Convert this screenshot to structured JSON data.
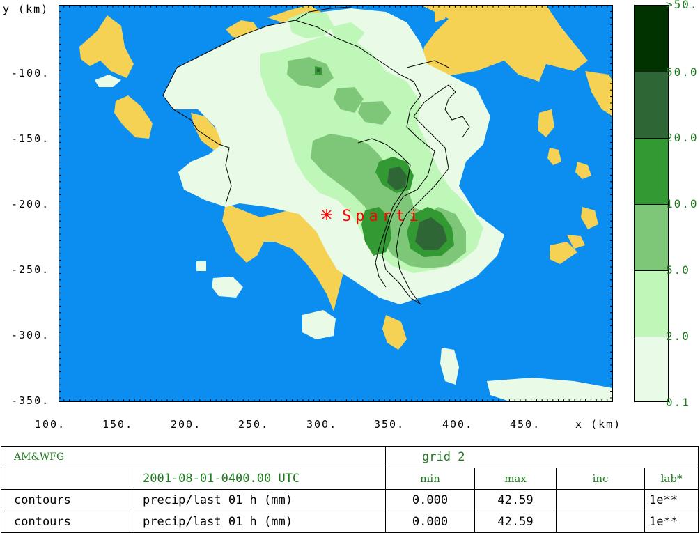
{
  "map": {
    "y_axis_label": "y (km)",
    "x_axis_label": "x (km)",
    "y_ticks": [
      "-100.",
      "-150.",
      "-200.",
      "-250.",
      "-300.",
      "-350."
    ],
    "x_ticks": [
      "100.",
      "150.",
      "200.",
      "250.",
      "300.",
      "350.",
      "400.",
      "450."
    ],
    "marker_label": "Sparti",
    "colors": {
      "sea": "#0b8ef0",
      "land_dry": "#f5d253",
      "level_0": "#e9fbe6",
      "level_1": "#bff7b9",
      "level_2": "#7fc778",
      "level_3": "#339933",
      "level_4": "#2e6635",
      "level_5": "#003300",
      "marker": "#ff0000"
    }
  },
  "legend": {
    "labels": [
      ">50.",
      "50.0",
      "20.0",
      "10.0",
      "5.0",
      "2.0",
      "0.1"
    ],
    "levels": [
      {
        "color": "#003300"
      },
      {
        "color": "#2e6635"
      },
      {
        "color": "#339933"
      },
      {
        "color": "#7fc778"
      },
      {
        "color": "#bff7b9"
      },
      {
        "color": "#e9fbe6"
      }
    ]
  },
  "info": {
    "brand": "AM&WFG",
    "grid": "grid 2",
    "timestamp": "2001-08-01-0400.00 UTC",
    "col_min": "min",
    "col_max": "max",
    "col_inc": "inc",
    "col_lab": "lab*",
    "rows": [
      {
        "type": "contours",
        "field": "precip/last 01 h (mm)",
        "min": "0.000",
        "max": "42.59",
        "inc": "",
        "lab": "1e**"
      },
      {
        "type": "contours",
        "field": "precip/last 01 h (mm)",
        "min": "0.000",
        "max": "42.59",
        "inc": "",
        "lab": "1e**"
      }
    ]
  }
}
